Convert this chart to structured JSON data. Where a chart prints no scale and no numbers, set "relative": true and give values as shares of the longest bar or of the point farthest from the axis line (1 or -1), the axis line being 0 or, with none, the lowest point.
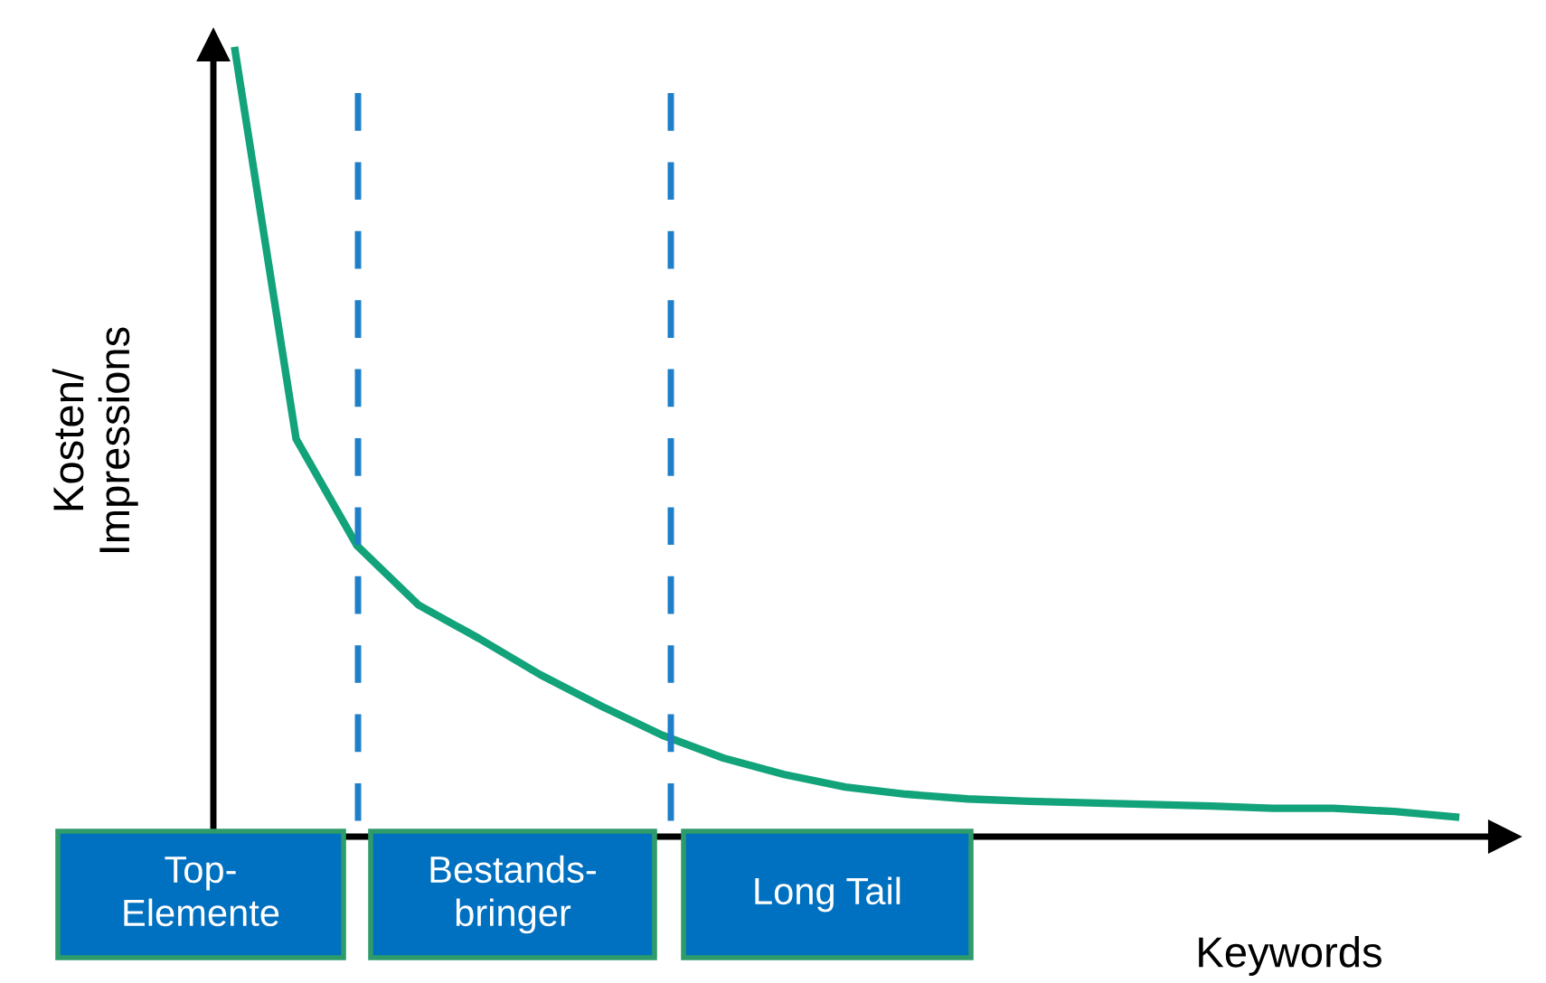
{
  "chart_data": {
    "type": "line",
    "relative": true,
    "ylabel": "Kosten/\nImpressions",
    "xlabel": "Keywords",
    "categories": [
      null,
      null,
      null,
      null,
      null,
      null,
      null,
      null,
      null,
      null,
      null,
      null,
      null,
      null,
      null,
      null,
      null,
      null,
      null,
      null,
      null
    ],
    "series": [
      {
        "color": "#12a37a",
        "values": [
          1,
          0.506,
          0.37,
          0.295,
          0.252,
          0.206,
          0.166,
          0.129,
          0.1,
          0.079,
          0.063,
          0.054,
          0.048,
          0.045,
          0.043,
          0.041,
          0.039,
          0.036,
          0.036,
          0.032,
          0.025
        ]
      }
    ],
    "annotations": [
      "Top-\nElemente",
      "Bestands-\nbringer",
      "Long Tail"
    ],
    "legend": false,
    "marker": "none",
    "line_style": "solid"
  }
}
